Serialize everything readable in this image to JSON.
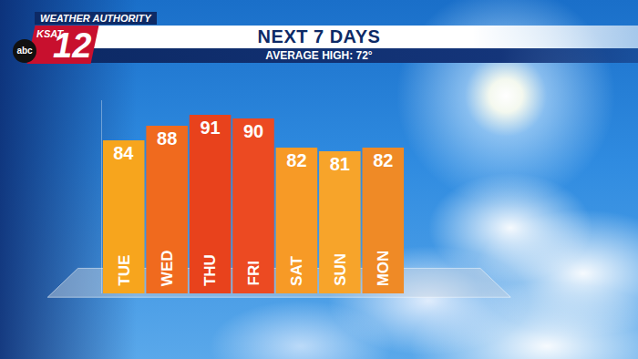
{
  "chart_data": {
    "type": "bar",
    "title": "NEXT 7 DAYS",
    "subtitle": "AVERAGE HIGH: 72°",
    "annotations": [
      "WEATHER AUTHORITY",
      "KSAT",
      "12",
      "abc"
    ],
    "categories": [
      "TUE",
      "WED",
      "THU",
      "FRI",
      "SAT",
      "SUN",
      "MON"
    ],
    "values": [
      84,
      88,
      91,
      90,
      82,
      81,
      82
    ],
    "colors": [
      "#f7a51d",
      "#f06a1e",
      "#e8421c",
      "#ec4a22",
      "#f79a26",
      "#f7a42a",
      "#ef8a26"
    ],
    "ylim": [
      42,
      95
    ],
    "yticks": [],
    "grid": false,
    "data_labels": true,
    "tick_labels": "x"
  }
}
